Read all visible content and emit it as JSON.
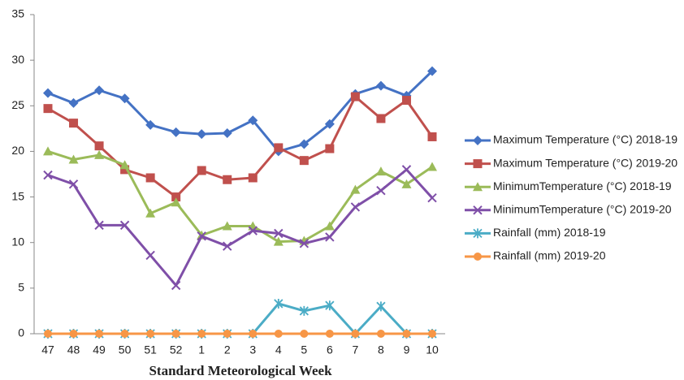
{
  "chart_data": {
    "type": "line",
    "x_label": "Standard Meteorological Week",
    "categories": [
      "47",
      "48",
      "49",
      "50",
      "51",
      "52",
      "1",
      "2",
      "3",
      "4",
      "5",
      "6",
      "7",
      "8",
      "9",
      "10"
    ],
    "ylim": [
      0,
      35
    ],
    "yticks": [
      0,
      5,
      10,
      15,
      20,
      25,
      30,
      35
    ],
    "grid": false,
    "legend": "right",
    "series": [
      {
        "name": "Maximum Temperature (°C) 2018-19",
        "color": "#4472c4",
        "marker": "diamond",
        "values": [
          26.4,
          25.3,
          26.7,
          25.8,
          22.9,
          22.1,
          21.9,
          22.0,
          23.4,
          20.0,
          20.8,
          23.0,
          26.3,
          27.2,
          26.1,
          28.8
        ]
      },
      {
        "name": "Maximum Temperature (°C) 2019-20",
        "color": "#c0504d",
        "marker": "square",
        "values": [
          24.7,
          23.1,
          20.6,
          18.0,
          17.1,
          15.0,
          17.9,
          16.9,
          17.1,
          20.4,
          19.0,
          20.3,
          26.0,
          23.6,
          25.6,
          21.6
        ]
      },
      {
        "name": "MinimumTemperature (°C) 2018-19",
        "color": "#9bbb59",
        "marker": "triangle",
        "values": [
          20.0,
          19.1,
          19.6,
          18.5,
          13.2,
          14.4,
          10.8,
          11.8,
          11.8,
          10.1,
          10.2,
          11.8,
          15.8,
          17.8,
          16.4,
          18.3
        ]
      },
      {
        "name": "MinimumTemperature (°C) 2019-20",
        "color": "#7f4fa8",
        "marker": "x",
        "values": [
          17.4,
          16.4,
          11.9,
          11.9,
          8.6,
          5.3,
          10.7,
          9.6,
          11.3,
          11.0,
          9.9,
          10.6,
          13.9,
          15.7,
          18.0,
          14.9
        ]
      },
      {
        "name": "Rainfall (mm) 2018-19",
        "color": "#4bacc6",
        "marker": "star",
        "values": [
          0,
          0,
          0,
          0,
          0,
          0,
          0,
          0,
          0,
          3.3,
          2.5,
          3.1,
          0,
          3.0,
          0,
          0
        ]
      },
      {
        "name": "Rainfall (mm) 2019-20",
        "color": "#f79646",
        "marker": "circle",
        "values": [
          0,
          0,
          0,
          0,
          0,
          0,
          0,
          0,
          0,
          0,
          0,
          0,
          0,
          0,
          0,
          0
        ]
      }
    ]
  }
}
